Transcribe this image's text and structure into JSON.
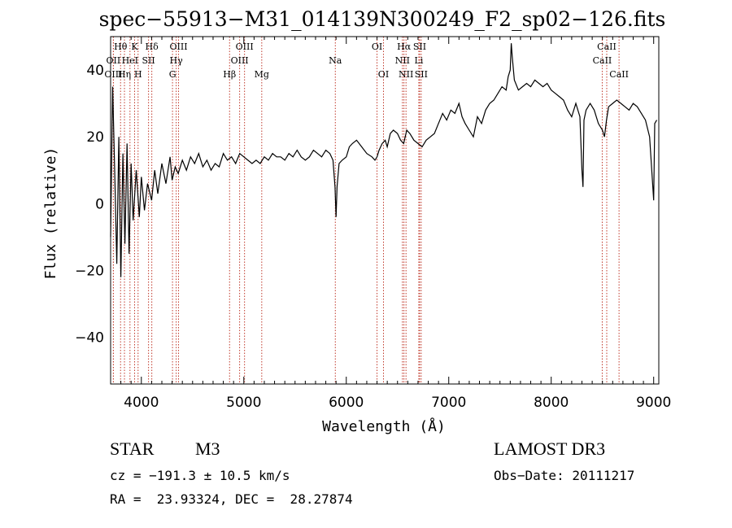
{
  "title": "spec−55913−M31_014139N300249_F2_sp02−126.fits",
  "info": {
    "class_label": "STAR",
    "subclass_label": "M3",
    "survey": "LAMOST DR3",
    "cz": "cz = −191.3 ± 10.5 km/s",
    "obs_date": "Obs−Date: 20111217",
    "coords": "RA =  23.93324, DEC =  28.27874"
  },
  "colors": {
    "spectrum": "#000000",
    "line_marker": "#c0392b",
    "axes": "#000000"
  },
  "chart_data": {
    "type": "line",
    "xlabel": "Wavelength (Å)",
    "ylabel": "Flux (relative)",
    "xlim": [
      3700,
      9050
    ],
    "ylim": [
      -54,
      50
    ],
    "xticks": [
      4000,
      5000,
      6000,
      7000,
      8000,
      9000
    ],
    "yticks": [
      -40,
      -20,
      0,
      20,
      40
    ],
    "grid": false,
    "legend": "none",
    "series": [
      {
        "x": [
          3700,
          3720,
          3740,
          3760,
          3780,
          3800,
          3820,
          3840,
          3860,
          3880,
          3900,
          3920,
          3950,
          3980,
          4000,
          4030,
          4060,
          4100,
          4130,
          4160,
          4200,
          4240,
          4280,
          4300,
          4330,
          4360,
          4400,
          4440,
          4480,
          4520,
          4560,
          4600,
          4640,
          4680,
          4720,
          4760,
          4800,
          4840,
          4880,
          4920,
          4960,
          5000,
          5040,
          5080,
          5120,
          5160,
          5200,
          5240,
          5280,
          5320,
          5360,
          5400,
          5440,
          5480,
          5520,
          5560,
          5600,
          5640,
          5680,
          5720,
          5760,
          5800,
          5840,
          5870,
          5890,
          5900,
          5910,
          5930,
          5960,
          6000,
          6030,
          6060,
          6100,
          6150,
          6200,
          6250,
          6280,
          6300,
          6320,
          6350,
          6380,
          6400,
          6430,
          6460,
          6500,
          6530,
          6560,
          6590,
          6620,
          6660,
          6700,
          6740,
          6780,
          6820,
          6860,
          6900,
          6940,
          6980,
          7020,
          7060,
          7100,
          7130,
          7160,
          7200,
          7240,
          7280,
          7320,
          7360,
          7400,
          7440,
          7480,
          7520,
          7560,
          7580,
          7600,
          7610,
          7620,
          7640,
          7680,
          7720,
          7760,
          7800,
          7840,
          7880,
          7920,
          7960,
          8000,
          8040,
          8080,
          8120,
          8160,
          8200,
          8240,
          8280,
          8300,
          8310,
          8320,
          8340,
          8380,
          8420,
          8460,
          8500,
          8520,
          8540,
          8560,
          8600,
          8640,
          8680,
          8720,
          8760,
          8800,
          8840,
          8880,
          8920,
          8960,
          9000,
          9010,
          9030
        ],
        "y": [
          -10,
          35,
          10,
          -18,
          20,
          -22,
          15,
          -12,
          18,
          -15,
          12,
          -5,
          10,
          -4,
          8,
          -2,
          6,
          1,
          10,
          3,
          12,
          6,
          14,
          7,
          11,
          9,
          13,
          10,
          14,
          12,
          15,
          11,
          13,
          10,
          12,
          11,
          15,
          13,
          14,
          12,
          15,
          14,
          13,
          12,
          13,
          12,
          14,
          13,
          15,
          14,
          14,
          13,
          15,
          14,
          16,
          14,
          13,
          14,
          16,
          15,
          14,
          16,
          15,
          13,
          5,
          -4,
          5,
          12,
          13,
          14,
          17,
          18,
          19,
          17,
          15,
          14,
          13,
          14,
          16,
          18,
          19,
          17,
          21,
          22,
          21,
          19,
          18,
          22,
          21,
          19,
          18,
          17,
          19,
          20,
          21,
          24,
          27,
          25,
          28,
          27,
          30,
          26,
          24,
          22,
          20,
          26,
          24,
          28,
          30,
          31,
          33,
          35,
          34,
          38,
          40,
          48,
          44,
          37,
          34,
          35,
          36,
          35,
          37,
          36,
          35,
          36,
          34,
          33,
          32,
          31,
          28,
          26,
          30,
          26,
          10,
          5,
          25,
          28,
          30,
          28,
          24,
          22,
          20,
          25,
          29,
          30,
          31,
          30,
          29,
          28,
          30,
          29,
          27,
          25,
          20,
          1,
          24,
          25
        ]
      }
    ],
    "line_markers": [
      {
        "label": "Hθ",
        "x": 3797,
        "row": 0
      },
      {
        "label": "OII",
        "x": 3727,
        "row": 1
      },
      {
        "label": "OIII",
        "x": 3727,
        "row": 2
      },
      {
        "label": "Hη",
        "x": 3835,
        "row": 2
      },
      {
        "label": "K",
        "x": 3934,
        "row": 0
      },
      {
        "label": "HeI",
        "x": 3889,
        "row": 1
      },
      {
        "label": "H",
        "x": 3968,
        "row": 2
      },
      {
        "label": "SII",
        "x": 4070,
        "row": 1
      },
      {
        "label": "Hδ",
        "x": 4102,
        "row": 0
      },
      {
        "label": "OIII",
        "x": 4363,
        "row": 0
      },
      {
        "label": "Hγ",
        "x": 4340,
        "row": 1
      },
      {
        "label": "G",
        "x": 4304,
        "row": 2
      },
      {
        "label": "Hβ",
        "x": 4861,
        "row": 2
      },
      {
        "label": "OIII",
        "x": 5007,
        "row": 0
      },
      {
        "label": "OIII",
        "x": 4959,
        "row": 1
      },
      {
        "label": "Mg",
        "x": 5175,
        "row": 2
      },
      {
        "label": "Na",
        "x": 5893,
        "row": 1
      },
      {
        "label": "OI",
        "x": 6300,
        "row": 0
      },
      {
        "label": "OI",
        "x": 6363,
        "row": 2
      },
      {
        "label": "Hα",
        "x": 6563,
        "row": 0
      },
      {
        "label": "NII",
        "x": 6548,
        "row": 1
      },
      {
        "label": "NII",
        "x": 6583,
        "row": 2
      },
      {
        "label": "SII",
        "x": 6716,
        "row": 0
      },
      {
        "label": "Li",
        "x": 6708,
        "row": 1
      },
      {
        "label": "SII",
        "x": 6731,
        "row": 2
      },
      {
        "label": "CaII",
        "x": 8542,
        "row": 0
      },
      {
        "label": "CaII",
        "x": 8498,
        "row": 1
      },
      {
        "label": "CaII",
        "x": 8662,
        "row": 2
      }
    ]
  }
}
